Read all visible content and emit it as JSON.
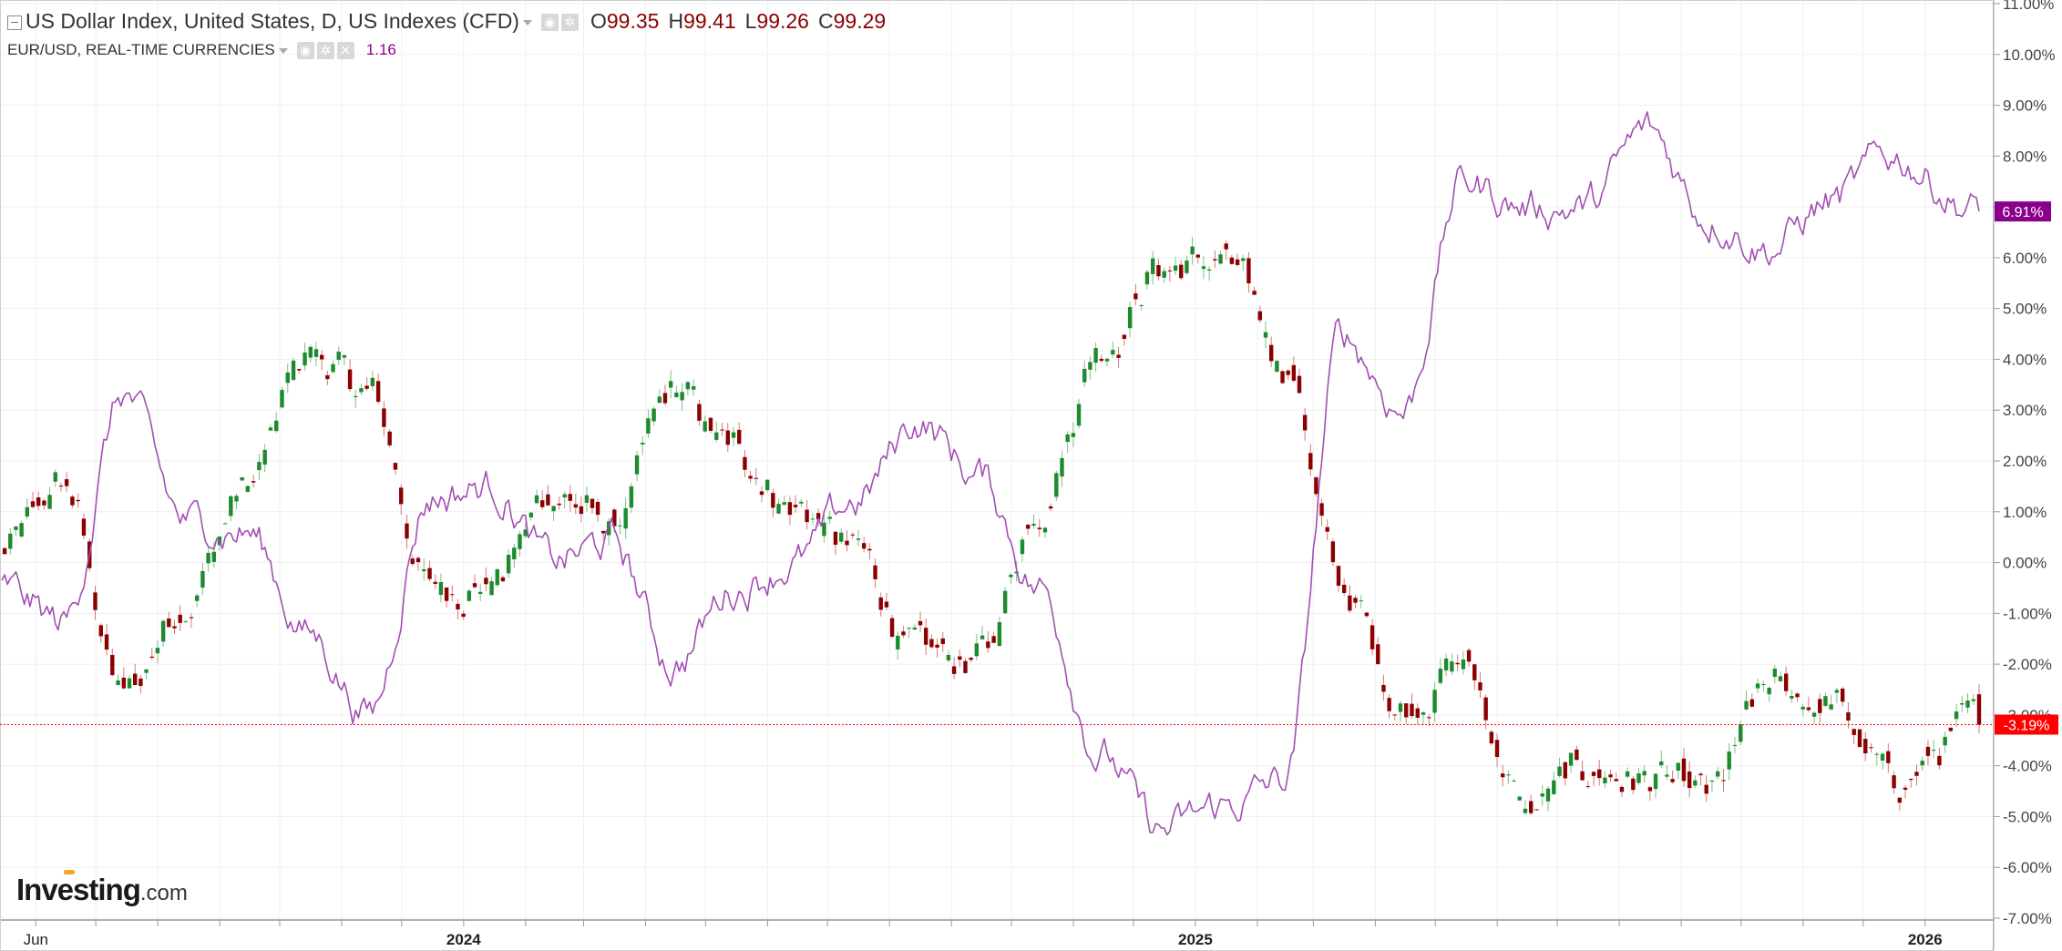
{
  "header": {
    "main_title": "US Dollar Index, United States, D, US Indexes (CFD)",
    "ohlc": [
      {
        "key": "O",
        "value": "99.35"
      },
      {
        "key": "H",
        "value": "99.41"
      },
      {
        "key": "L",
        "value": "99.26"
      },
      {
        "key": "C",
        "value": "99.29"
      }
    ],
    "sub_title": "EUR/USD, REAL-TIME CURRENCIES",
    "sub_value": "1.16"
  },
  "logo": {
    "brand": "Investing",
    "suffix": ".com"
  },
  "colors": {
    "up": "#1e8a2e",
    "down": "#8b0000",
    "eurusd": "#a24fb3",
    "last_price_line": "#ff0000",
    "eur_badge": "#8b008b",
    "grid": "#efefef"
  },
  "chart_data": {
    "type": "line",
    "y_unit": "percent change",
    "ylim": [
      -7.0,
      11.0
    ],
    "y_ticks": [
      "11.00%",
      "10.00%",
      "9.00%",
      "8.00%",
      "7.00%",
      "6.00%",
      "5.00%",
      "4.00%",
      "3.00%",
      "2.00%",
      "1.00%",
      "0.00%",
      "-1.00%",
      "-2.00%",
      "-3.00%",
      "-4.00%",
      "-5.00%",
      "-6.00%",
      "-7.00%"
    ],
    "x_labels": [
      {
        "label": "Jun",
        "bold": false
      },
      {
        "label": "2024",
        "bold": true
      },
      {
        "label": "2025",
        "bold": true
      },
      {
        "label": "2026",
        "bold": true
      }
    ],
    "grid": true,
    "series": [
      {
        "name": "US Dollar Index",
        "style": "candlestick",
        "last_value_label": "-3.19%",
        "x": [
          "2023-05",
          "2023-06",
          "2023-07",
          "2023-08",
          "2023-09",
          "2023-10",
          "2023-11",
          "2023-12",
          "2024-01",
          "2024-02",
          "2024-03",
          "2024-04",
          "2024-05",
          "2024-06",
          "2024-07",
          "2024-08",
          "2024-09",
          "2024-10",
          "2024-11",
          "2024-12",
          "2025-01",
          "2025-02",
          "2025-03",
          "2025-04",
          "2025-05",
          "2025-06",
          "2025-07",
          "2025-08",
          "2025-09",
          "2025-10",
          "2025-11",
          "2025-12",
          "2026-01"
        ],
        "values": [
          0.2,
          1.5,
          -2.6,
          -0.7,
          1.5,
          4.1,
          3.3,
          -0.5,
          -0.4,
          1.4,
          0.7,
          3.3,
          2.2,
          1.1,
          0.2,
          -1.8,
          -1.9,
          1.2,
          4.3,
          5.8,
          5.9,
          4.0,
          -0.5,
          -2.8,
          -2.0,
          -4.9,
          -4.1,
          -4.3,
          -4.6,
          -2.5,
          -2.8,
          -4.3,
          -3.19
        ]
      },
      {
        "name": "EUR/USD",
        "style": "line",
        "last_value_label": "6.91%",
        "x": [
          "2023-05",
          "2023-06",
          "2023-07",
          "2023-08",
          "2023-09",
          "2023-10",
          "2023-11",
          "2023-12",
          "2024-01",
          "2024-02",
          "2024-03",
          "2024-04",
          "2024-05",
          "2024-06",
          "2024-07",
          "2024-08",
          "2024-09",
          "2024-10",
          "2024-11",
          "2024-12",
          "2025-01",
          "2025-02",
          "2025-03",
          "2025-04",
          "2025-05",
          "2025-06",
          "2025-07",
          "2025-08",
          "2025-09",
          "2025-10",
          "2025-11",
          "2025-12",
          "2026-01"
        ],
        "values": [
          -0.5,
          -1.2,
          3.3,
          0.8,
          0.6,
          -1.4,
          -3.0,
          1.3,
          1.5,
          0.0,
          0.4,
          -2.0,
          -0.5,
          0.0,
          1.2,
          2.8,
          1.7,
          -0.5,
          -3.8,
          -5.3,
          -4.8,
          -4.3,
          4.5,
          3.0,
          7.5,
          7.0,
          7.0,
          8.5,
          6.8,
          6.2,
          7.1,
          8.0,
          6.91
        ]
      }
    ]
  }
}
